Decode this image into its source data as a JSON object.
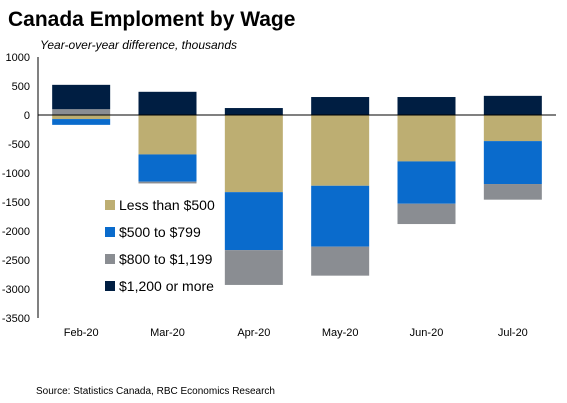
{
  "chart_data": {
    "type": "bar",
    "stacked": true,
    "title": "Canada Emploment by Wage",
    "subtitle": "Year-over-year difference, thousands",
    "source": "Source: Statistics Canada, RBC Economics Research",
    "categories": [
      "Feb-20",
      "Mar-20",
      "Apr-20",
      "May-20",
      "Jun-20",
      "Jul-20"
    ],
    "yticks": [
      "1000",
      "500",
      "0",
      "-500",
      "-1000",
      "-1500",
      "-2000",
      "-2500",
      "-3000",
      "-3500"
    ],
    "ylim": [
      -3500,
      1000
    ],
    "legend_position": "inside-left",
    "series": [
      {
        "name": "Less than $500",
        "color": "#BDAE72",
        "values": [
          -70,
          -680,
          -1330,
          -1220,
          -800,
          -450
        ]
      },
      {
        "name": "$500 to $799",
        "color": "#0A6BCC",
        "values": [
          -100,
          -470,
          -1000,
          -1050,
          -730,
          -740
        ]
      },
      {
        "name": "$800 to $1,199",
        "color": "#8A8D92",
        "values": [
          100,
          -30,
          -600,
          -500,
          -350,
          -270
        ]
      },
      {
        "name": "$1,200 or more",
        "color": "#001E42",
        "values": [
          420,
          400,
          120,
          310,
          310,
          330
        ]
      }
    ]
  }
}
